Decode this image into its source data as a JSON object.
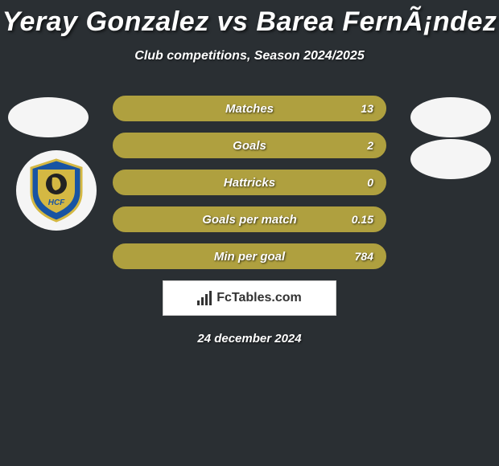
{
  "title": "Yeray Gonzalez vs Barea FernÃ¡ndez",
  "subtitle": "Club competitions, Season 2024/2025",
  "colors": {
    "background": "#2a2f33",
    "bar_fill": "#afa03f",
    "bar_border": "#afa03f",
    "avatar_bg": "#f5f5f5",
    "shield_blue": "#1854a3",
    "shield_yellow": "#d4b843"
  },
  "stats": [
    {
      "label": "Matches",
      "value": "13",
      "fill_pct": 100
    },
    {
      "label": "Goals",
      "value": "2",
      "fill_pct": 100
    },
    {
      "label": "Hattricks",
      "value": "0",
      "fill_pct": 100
    },
    {
      "label": "Goals per match",
      "value": "0.15",
      "fill_pct": 100
    },
    {
      "label": "Min per goal",
      "value": "784",
      "fill_pct": 100
    }
  ],
  "footer": {
    "brand": "FcTables.com",
    "date": "24 december 2024"
  }
}
